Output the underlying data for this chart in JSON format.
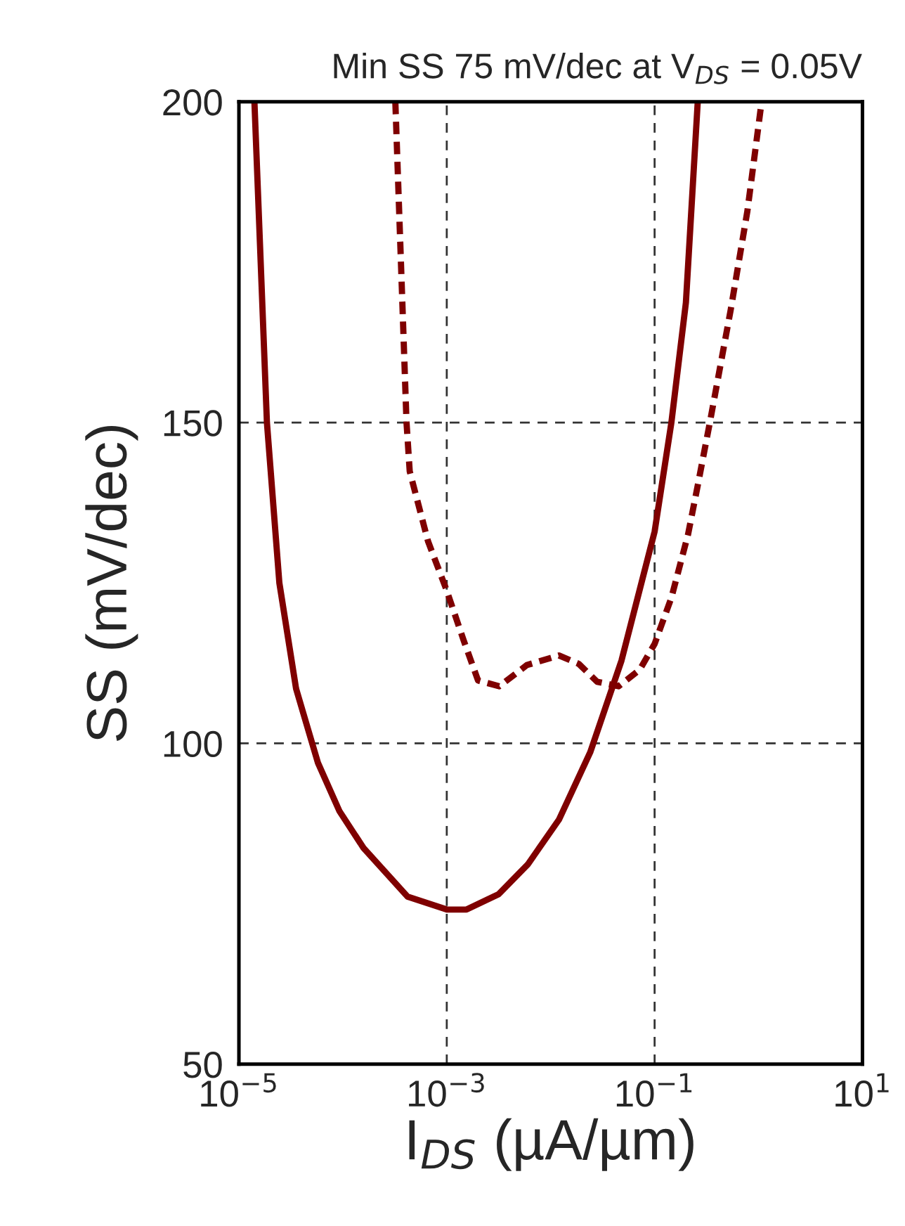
{
  "chart_data": {
    "type": "line",
    "title": "Min SS 75 mV/dec at V$_{DS}$ = 0.05V",
    "xlabel": "I$_{DS}$ (µA/µm)",
    "ylabel": "SS (mV/dec)",
    "log": "x",
    "grid": true,
    "xlim": [
      1e-05,
      10
    ],
    "ylim": [
      50,
      200
    ],
    "xticks": [
      {
        "value": 1e-05,
        "label": "10$^{−5}$"
      },
      {
        "value": 0.001,
        "label": "10$^{−3}$"
      },
      {
        "value": 0.1,
        "label": "10$^{−1}$"
      },
      {
        "value": 10,
        "label": "10$^{1}$"
      }
    ],
    "yticks": [
      50,
      100,
      150,
      200
    ],
    "series": [
      {
        "color": "#7f0000",
        "line_style": "solid",
        "x": [
          1.41e-05,
          1.86e-05,
          2.45e-05,
          3.55e-05,
          5.75e-05,
          9.3e-05,
          0.000158,
          0.00042,
          0.001,
          0.00155,
          0.00316,
          0.006,
          0.012,
          0.024,
          0.048,
          0.1,
          0.145,
          0.2,
          0.26
        ],
        "values": [
          200,
          150,
          125,
          108.5,
          97,
          89.4,
          83.7,
          76.1,
          74.1,
          74.1,
          76.5,
          81.1,
          88.1,
          98.6,
          112.9,
          133,
          150,
          168.7,
          200
        ]
      },
      {
        "color": "#7f0000",
        "line_style": "dashed",
        "x": [
          0.00032,
          0.00041,
          0.00044,
          0.00066,
          0.001,
          0.00145,
          0.002,
          0.0032,
          0.0059,
          0.012,
          0.0186,
          0.028,
          0.045,
          0.072,
          0.1,
          0.145,
          0.21,
          0.26,
          0.34,
          0.54,
          0.78,
          1.07
        ],
        "values": [
          200,
          150,
          142.4,
          131.5,
          123.8,
          116.1,
          109.8,
          108.9,
          112.2,
          113.7,
          112.4,
          109.6,
          108.9,
          111.5,
          115.5,
          122.7,
          132.6,
          140.2,
          150,
          167.6,
          182.9,
          200
        ]
      }
    ]
  }
}
